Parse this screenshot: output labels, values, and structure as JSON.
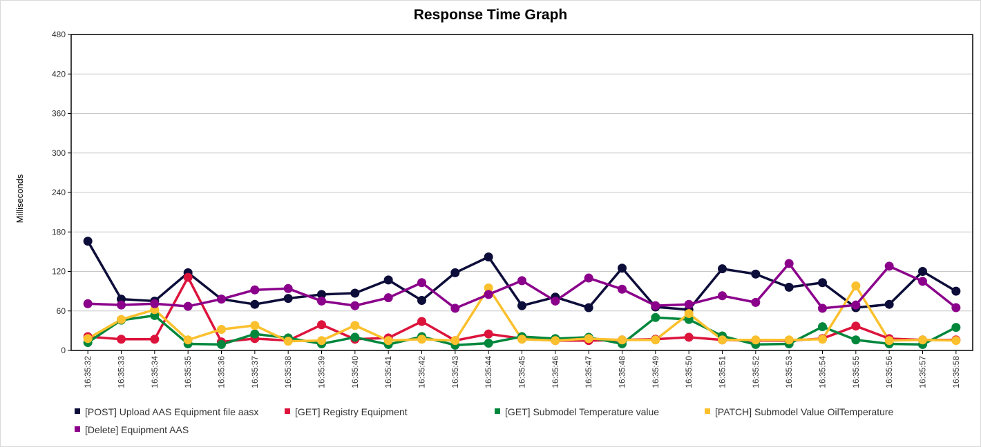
{
  "chart_data": {
    "type": "line",
    "title": "Response Time Graph",
    "xlabel": "",
    "ylabel": "Milliseconds",
    "ylim": [
      0,
      480
    ],
    "yticks": [
      0,
      60,
      120,
      180,
      240,
      300,
      360,
      420,
      480
    ],
    "grid": true,
    "legend_position": "bottom",
    "x": [
      "16:35:32",
      "16:35:33",
      "16:35:34",
      "16:35:35",
      "16:35:36",
      "16:35:37",
      "16:35:38",
      "16:35:39",
      "16:35:40",
      "16:35:41",
      "16:35:42",
      "16:35:43",
      "16:35:44",
      "16:35:45",
      "16:35:46",
      "16:35:47",
      "16:35:48",
      "16:35:49",
      "16:35:50",
      "16:35:51",
      "16:35:52",
      "16:35:53",
      "16:35:54",
      "16:35:55",
      "16:35:56",
      "16:35:57",
      "16:35:58"
    ],
    "series": [
      {
        "name": "[POST] Upload AAS Equipment file aasx",
        "color": "#0d0d3a",
        "values": [
          166,
          78,
          75,
          118,
          78,
          70,
          79,
          85,
          87,
          107,
          76,
          118,
          142,
          68,
          81,
          65,
          125,
          66,
          62,
          124,
          116,
          96,
          103,
          65,
          70,
          120,
          90
        ]
      },
      {
        "name": "[GET] Registry Equipment",
        "color": "#dc143c",
        "values": [
          21,
          17,
          17,
          111,
          13,
          18,
          15,
          39,
          17,
          19,
          44,
          15,
          25,
          18,
          15,
          15,
          16,
          17,
          20,
          16,
          15,
          15,
          18,
          37,
          18,
          16,
          16
        ]
      },
      {
        "name": "[GET] Submodel Temperature value",
        "color": "#00873c",
        "values": [
          12,
          46,
          53,
          10,
          9,
          25,
          19,
          10,
          20,
          9,
          21,
          8,
          11,
          21,
          18,
          20,
          10,
          50,
          47,
          22,
          9,
          10,
          36,
          16,
          10,
          9,
          35
        ]
      },
      {
        "name": "[PATCH] Submodel Value OilTemperature",
        "color": "#fbc02d",
        "values": [
          18,
          47,
          62,
          16,
          32,
          38,
          14,
          15,
          38,
          15,
          17,
          15,
          95,
          17,
          15,
          18,
          16,
          16,
          56,
          16,
          16,
          16,
          17,
          98,
          15,
          16,
          15
        ]
      },
      {
        "name": "[Delete] Equipment AAS",
        "color": "#8b008b",
        "values": [
          71,
          69,
          71,
          67,
          78,
          92,
          94,
          75,
          68,
          80,
          103,
          64,
          85,
          106,
          75,
          110,
          93,
          68,
          70,
          83,
          73,
          132,
          64,
          69,
          128,
          105,
          65
        ]
      }
    ]
  }
}
